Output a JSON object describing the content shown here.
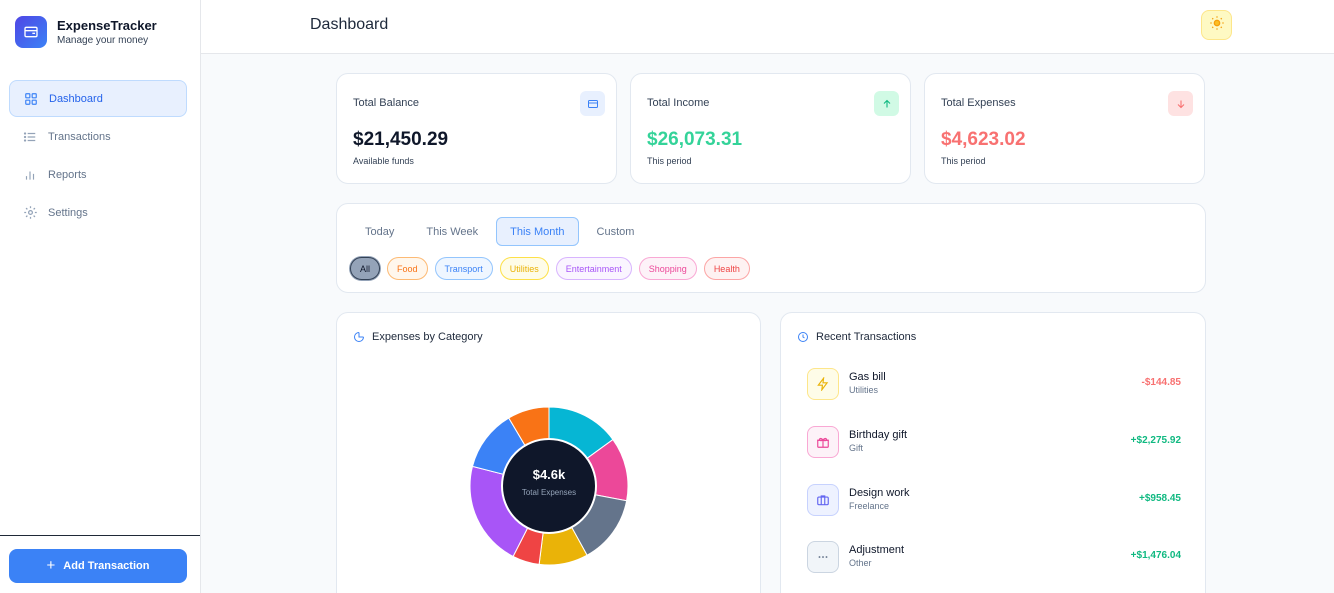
{
  "brand": {
    "title": "ExpenseTracker",
    "subtitle": "Manage your money"
  },
  "sidebar": {
    "items": [
      {
        "label": "Dashboard",
        "icon": "grid-icon",
        "active": true
      },
      {
        "label": "Transactions",
        "icon": "list-icon",
        "active": false
      },
      {
        "label": "Reports",
        "icon": "bar-chart-icon",
        "active": false
      },
      {
        "label": "Settings",
        "icon": "gear-icon",
        "active": false
      }
    ],
    "add_label": "Add Transaction"
  },
  "header": {
    "title": "Dashboard",
    "theme_icon": "sun-icon"
  },
  "stats": [
    {
      "label": "Total Balance",
      "value": "$21,450.29",
      "sub": "Available funds",
      "color": "#0f172a",
      "icon": "wallet-icon"
    },
    {
      "label": "Total Income",
      "value": "$26,073.31",
      "sub": "This period",
      "color": "#34d399",
      "icon": "arrow-up-icon"
    },
    {
      "label": "Total Expenses",
      "value": "$4,623.02",
      "sub": "This period",
      "color": "#f87171",
      "icon": "arrow-down-icon"
    }
  ],
  "filters": {
    "tabs": [
      "Today",
      "This Week",
      "This Month",
      "Custom"
    ],
    "active_tab": "This Month",
    "chips": [
      {
        "label": "All",
        "color": "#334155"
      },
      {
        "label": "Food",
        "color": "#f97316"
      },
      {
        "label": "Transport",
        "color": "#3b82f6"
      },
      {
        "label": "Utilities",
        "color": "#eab308"
      },
      {
        "label": "Entertainment",
        "color": "#a855f7"
      },
      {
        "label": "Shopping",
        "color": "#ec4899"
      },
      {
        "label": "Health",
        "color": "#ef4444"
      }
    ]
  },
  "chart_panel": {
    "title": "Expenses by Category",
    "center_value": "$4.6k",
    "center_label": "Total Expenses"
  },
  "chart_data": {
    "type": "pie",
    "slices": [
      {
        "color": "#06b6d4",
        "percent": 15
      },
      {
        "color": "#ec4899",
        "percent": 13
      },
      {
        "color": "#64748b",
        "percent": 14
      },
      {
        "color": "#eab308",
        "percent": 10
      },
      {
        "color": "#ef4444",
        "percent": 5.5
      },
      {
        "color": "#a855f7",
        "percent": 21.5
      },
      {
        "color": "#3b82f6",
        "percent": 12.5
      },
      {
        "color": "#f97316",
        "percent": 8.5
      }
    ]
  },
  "transactions_panel": {
    "title": "Recent Transactions",
    "items": [
      {
        "name": "Gas bill",
        "category": "Utilities",
        "amount": "-$144.85",
        "icon": "bolt-icon",
        "color": "#eab308",
        "bg": "#fef9c3",
        "amount_color": "#f87171"
      },
      {
        "name": "Birthday gift",
        "category": "Gift",
        "amount": "+$2,275.92",
        "icon": "gift-icon",
        "color": "#ec4899",
        "bg": "#fce7f3",
        "amount_color": "#10b981"
      },
      {
        "name": "Design work",
        "category": "Freelance",
        "amount": "+$958.45",
        "icon": "briefcase-icon",
        "color": "#6366f1",
        "bg": "#ede9fe",
        "amount_color": "#10b981"
      },
      {
        "name": "Adjustment",
        "category": "Other",
        "amount": "+$1,476.04",
        "icon": "more-icon",
        "color": "#64748b",
        "bg": "#f1f5f9",
        "amount_color": "#10b981"
      }
    ]
  }
}
